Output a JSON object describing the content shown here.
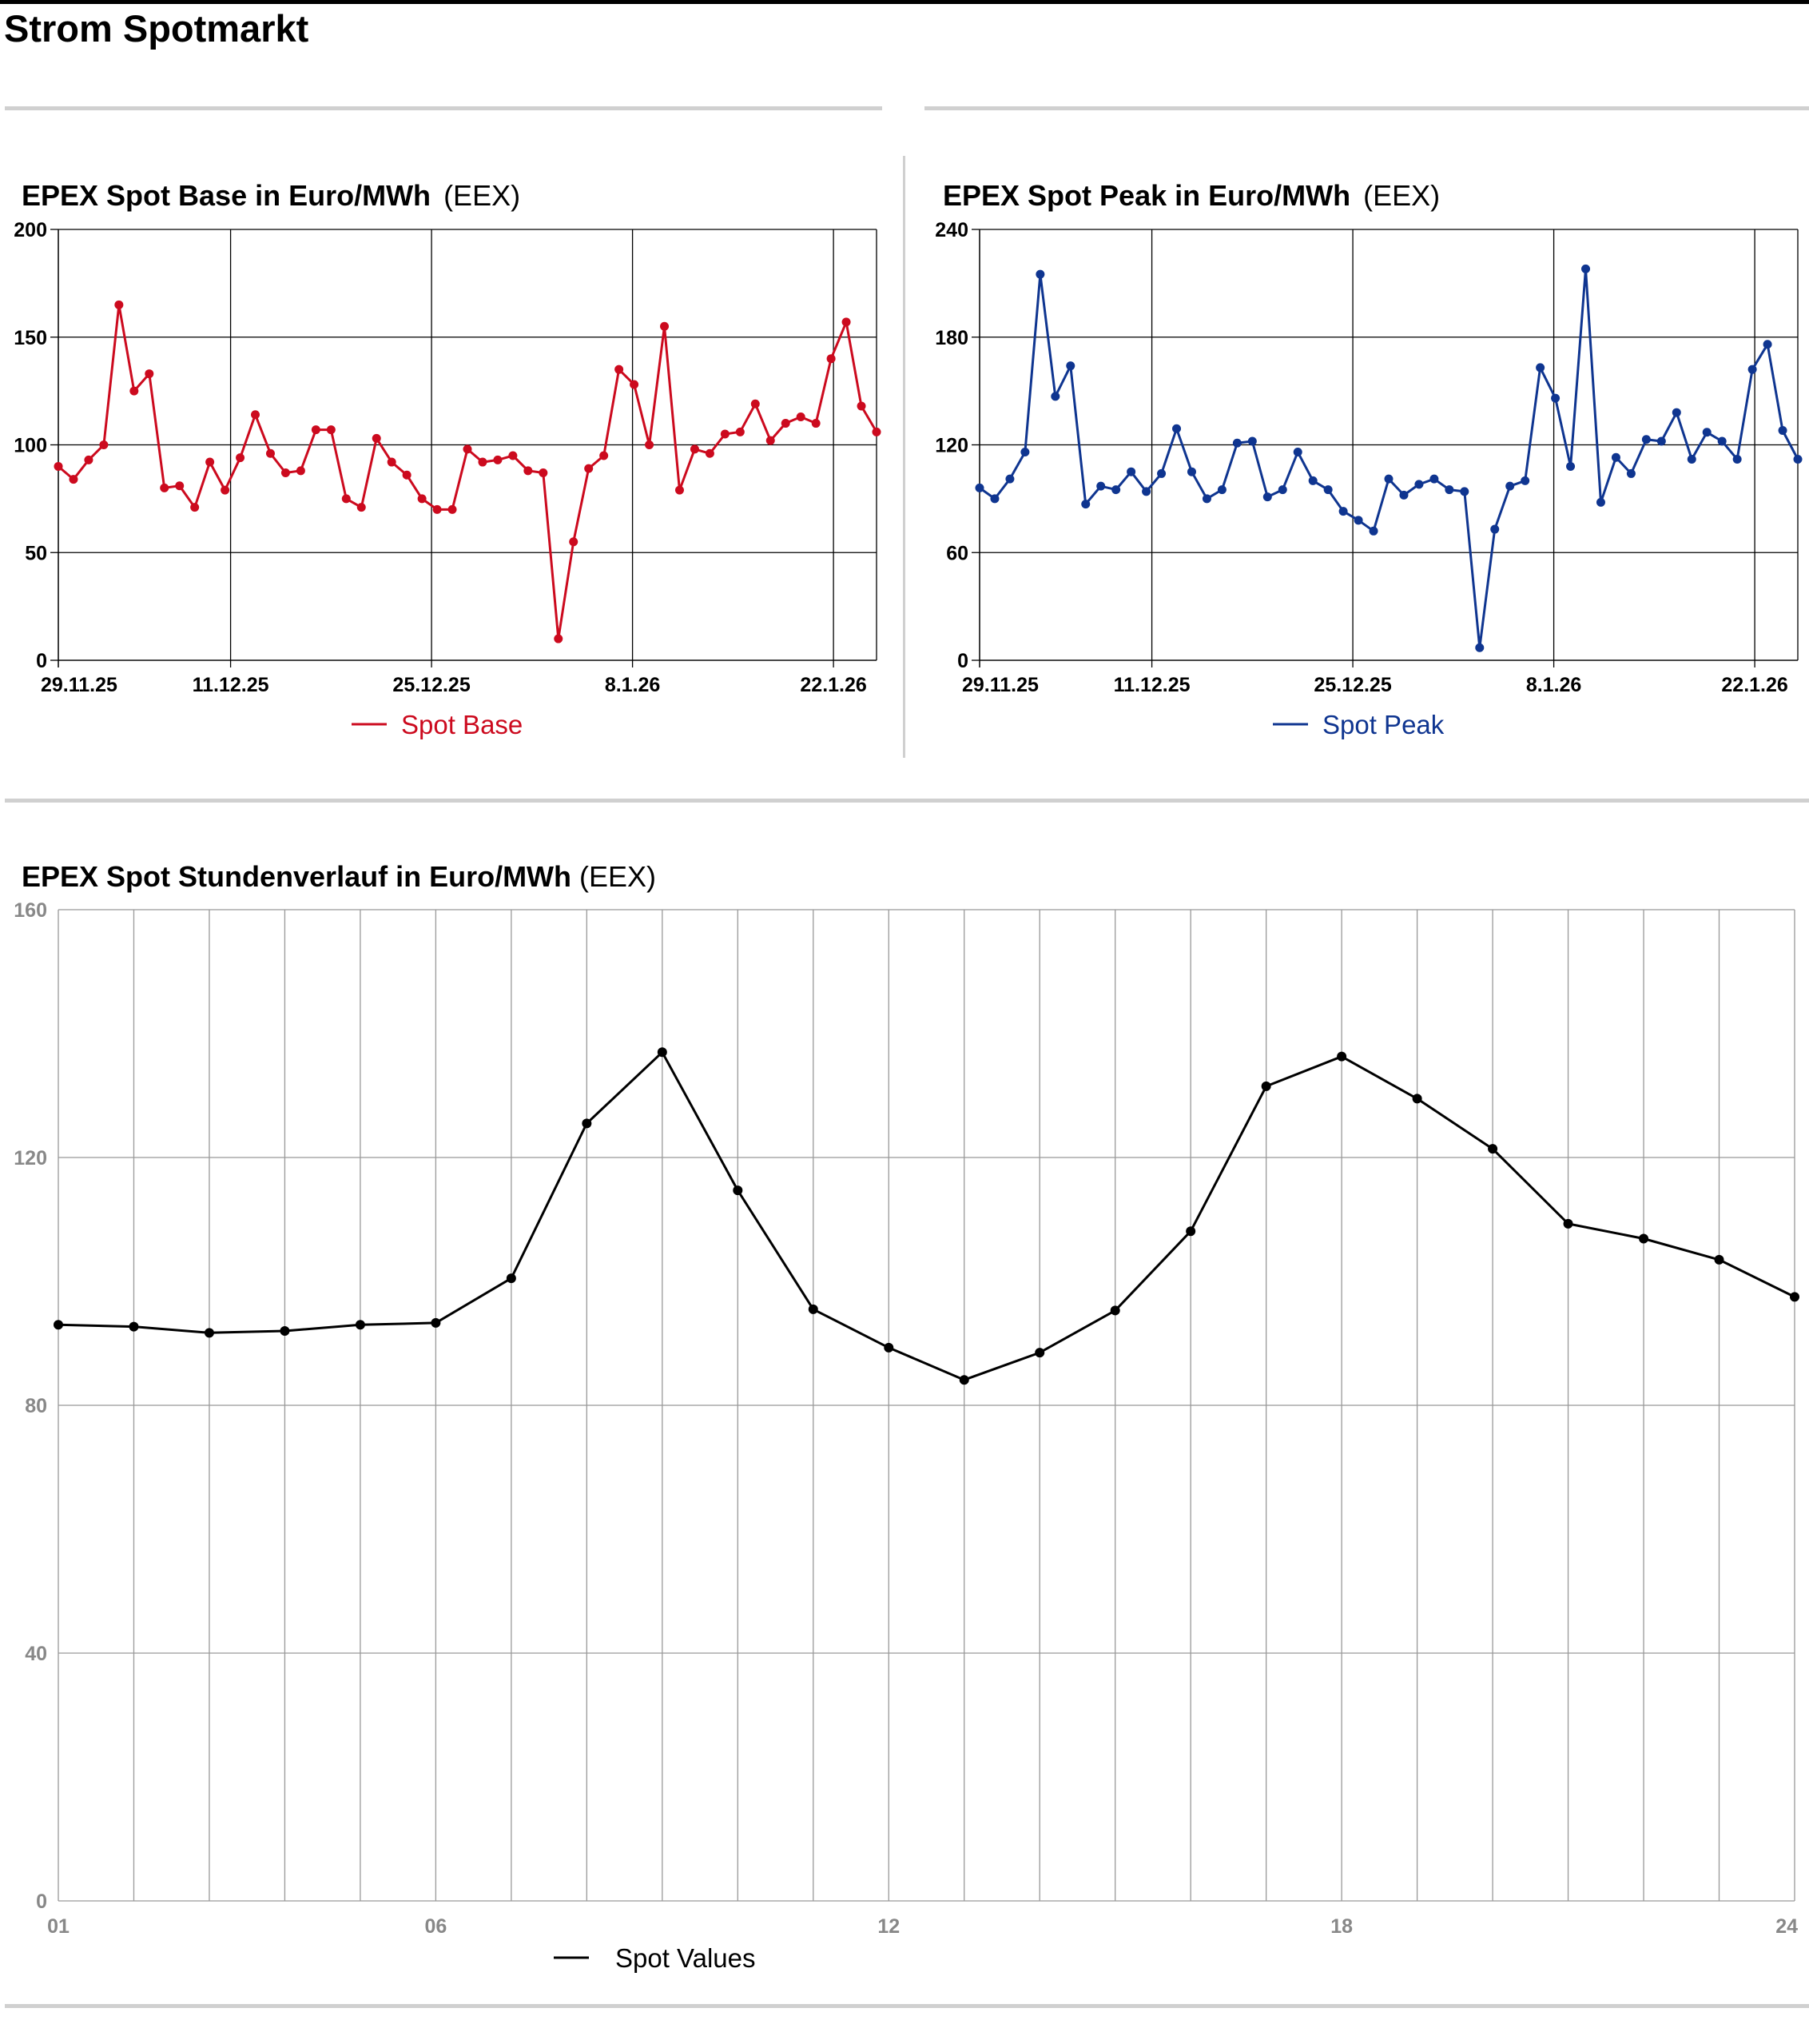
{
  "page": {
    "title": "Strom Spotmarkt"
  },
  "colors": {
    "base": "#cc0a1e",
    "peak": "#0f3590",
    "hourly": "#000000",
    "grid": "#000000",
    "hourlyGrid": "#999999"
  },
  "chart_data": [
    {
      "id": "base",
      "type": "line",
      "title": "EPEX Spot Base in Euro/MWh",
      "source": "(EEX)",
      "x_start": "29.11.25",
      "x_end": "25.1.26",
      "xticks": [
        "29.11.25",
        "11.12.25",
        "25.12.25",
        "8.1.26",
        "22.1.26"
      ],
      "ylim": [
        0,
        200
      ],
      "yticks": [
        0,
        50,
        100,
        150,
        200
      ],
      "grid": true,
      "legend": "bottom-center",
      "series": [
        {
          "name": "Spot Base",
          "color": "#cc0a1e",
          "values": [
            90,
            84,
            93,
            100,
            165,
            125,
            133,
            80,
            81,
            71,
            92,
            79,
            94,
            114,
            96,
            87,
            88,
            107,
            107,
            75,
            71,
            103,
            92,
            86,
            75,
            70,
            70,
            98,
            92,
            93,
            95,
            88,
            87,
            10,
            55,
            89,
            95,
            135,
            128,
            100,
            155,
            79,
            98,
            96,
            105,
            106,
            119,
            102,
            110,
            113,
            110,
            140,
            157,
            118,
            106
          ]
        }
      ]
    },
    {
      "id": "peak",
      "type": "line",
      "title": "EPEX Spot Peak in Euro/MWh",
      "source": "(EEX)",
      "x_start": "29.11.25",
      "x_end": "25.1.26",
      "xticks": [
        "29.11.25",
        "11.12.25",
        "25.12.25",
        "8.1.26",
        "22.1.26"
      ],
      "ylim": [
        0,
        240
      ],
      "yticks": [
        0,
        60,
        120,
        180,
        240
      ],
      "grid": true,
      "legend": "bottom-center",
      "series": [
        {
          "name": "Spot Peak",
          "color": "#0f3590",
          "values": [
            96,
            90,
            101,
            116,
            215,
            147,
            164,
            87,
            97,
            95,
            105,
            94,
            104,
            129,
            105,
            90,
            95,
            121,
            122,
            91,
            95,
            116,
            100,
            95,
            83,
            78,
            72,
            101,
            92,
            98,
            101,
            95,
            94,
            7,
            73,
            97,
            100,
            163,
            146,
            108,
            218,
            88,
            113,
            104,
            123,
            122,
            138,
            112,
            127,
            122,
            112,
            162,
            176,
            128,
            112
          ]
        }
      ]
    },
    {
      "id": "hourly",
      "type": "line",
      "title": "EPEX Spot Stundenverlauf in Euro/MWh",
      "source": "(EEX)",
      "x": [
        1,
        2,
        3,
        4,
        5,
        6,
        7,
        8,
        9,
        10,
        11,
        12,
        13,
        14,
        15,
        16,
        17,
        18,
        19,
        20,
        21,
        22,
        23,
        24
      ],
      "xticks": [
        "01",
        "06",
        "12",
        "18",
        "24"
      ],
      "xtick_hours": [
        1,
        6,
        12,
        18,
        24
      ],
      "ylim": [
        0,
        160
      ],
      "yticks": [
        0,
        40,
        80,
        120,
        160
      ],
      "grid": true,
      "legend": "bottom-center",
      "series": [
        {
          "name": "Spot Values",
          "color": "#000000",
          "values": [
            93,
            92.7,
            91.7,
            92,
            93,
            93.3,
            100.5,
            125.5,
            137,
            114.7,
            95.5,
            89.3,
            84.1,
            88.5,
            95.3,
            108.1,
            131.5,
            136.3,
            129.5,
            121.4,
            109.3,
            106.9,
            103.5,
            97.5
          ]
        }
      ]
    }
  ]
}
